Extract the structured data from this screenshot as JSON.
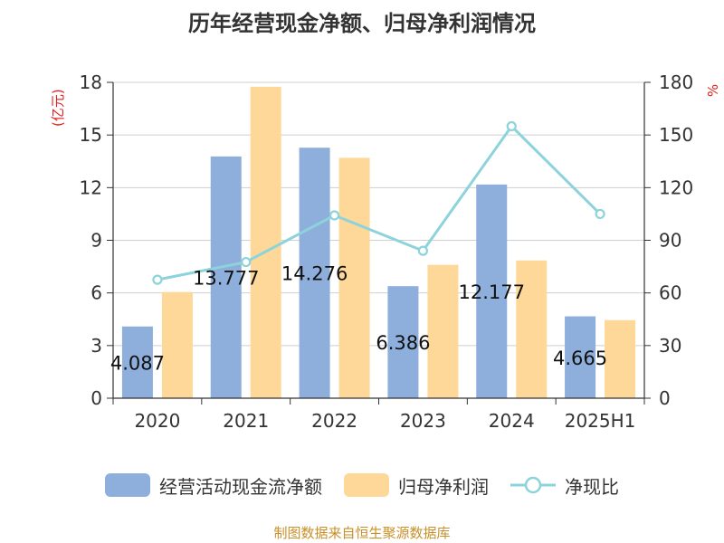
{
  "title": "历年经营现金净额、归母净利润情况",
  "source_text": "制图数据来自恒生聚源数据库",
  "legend": [
    {
      "label": "经营活动现金流净额",
      "kind": "bar",
      "color": "#8eaedb"
    },
    {
      "label": "归母净利润",
      "kind": "bar",
      "color": "#fdd898"
    },
    {
      "label": "净现比",
      "kind": "line",
      "color": "#8dd3db"
    }
  ],
  "chart_data": {
    "type": "bar",
    "title": "历年经营现金净额、归母净利润情况",
    "categories": [
      "2020",
      "2021",
      "2022",
      "2023",
      "2024",
      "2025H1"
    ],
    "y_left": {
      "unit": "(亿元)",
      "min": 0,
      "max": 18,
      "ticks": [
        "0",
        "3",
        "6",
        "9",
        "12",
        "15",
        "18"
      ]
    },
    "y_right": {
      "unit": "%",
      "min": 0,
      "max": 180,
      "ticks": [
        "0",
        "30",
        "60",
        "90",
        "120",
        "150",
        "180"
      ]
    },
    "grid": true,
    "legend_position": "bottom",
    "series": [
      {
        "name": "经营活动现金流净额",
        "type": "bar",
        "axis": "left",
        "color": "#8eaedb",
        "values": [
          4.087,
          13.777,
          14.276,
          6.386,
          12.177,
          4.665
        ],
        "labels": [
          "4.087",
          "13.777",
          "14.276",
          "6.386",
          "12.177",
          "4.665"
        ]
      },
      {
        "name": "归母净利润",
        "type": "bar",
        "axis": "left",
        "color": "#fdd898",
        "values": [
          6.05,
          17.75,
          13.7,
          7.6,
          7.85,
          4.45
        ]
      },
      {
        "name": "净现比",
        "type": "line",
        "axis": "right",
        "color": "#8dd3db",
        "values": [
          67.5,
          77.6,
          104.2,
          84.0,
          155.0,
          105.0
        ]
      }
    ]
  }
}
